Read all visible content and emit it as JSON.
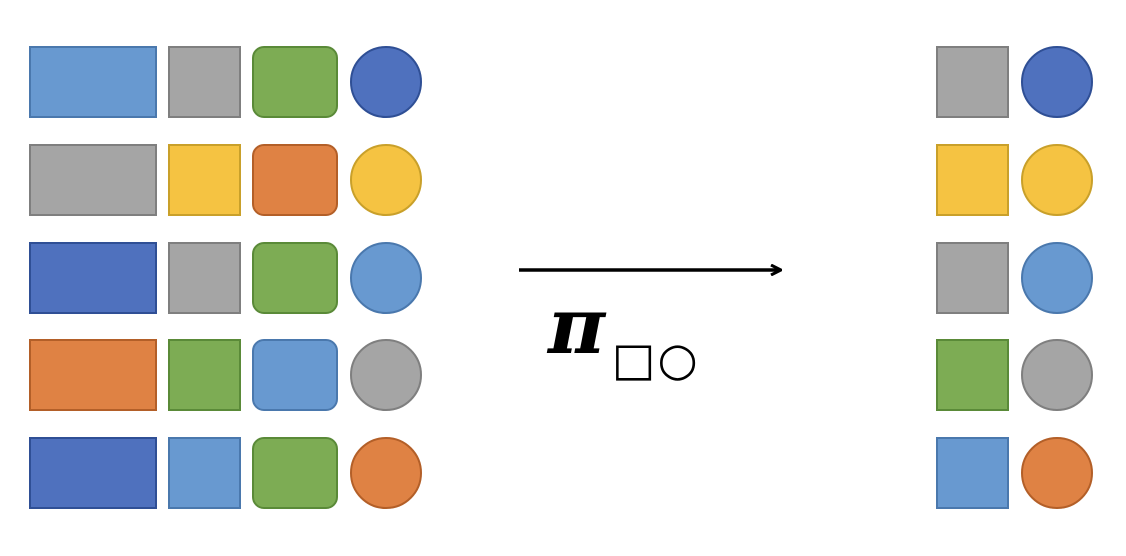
{
  "colors": {
    "light_blue": "#6899D0",
    "gray": "#A5A5A5",
    "green": "#7DAC54",
    "dark_blue": "#4F71BE",
    "yellow": "#F5C342",
    "orange": "#DF8244"
  },
  "strokes": {
    "light_blue": "#4A78AD",
    "gray": "#7F7F7F",
    "green": "#5A8A38",
    "dark_blue": "#2F4F95",
    "yellow": "#C9A02A",
    "orange": "#B35F28"
  },
  "input_rows": [
    {
      "wide": "light_blue",
      "square": "gray",
      "rounded": "green",
      "circle": "dark_blue"
    },
    {
      "wide": "gray",
      "square": "yellow",
      "rounded": "orange",
      "circle": "yellow"
    },
    {
      "wide": "dark_blue",
      "square": "gray",
      "rounded": "green",
      "circle": "light_blue"
    },
    {
      "wide": "orange",
      "square": "green",
      "rounded": "light_blue",
      "circle": "gray"
    },
    {
      "wide": "dark_blue",
      "square": "light_blue",
      "rounded": "green",
      "circle": "orange"
    }
  ],
  "output_rows": [
    {
      "square": "gray",
      "circle": "dark_blue"
    },
    {
      "square": "yellow",
      "circle": "yellow"
    },
    {
      "square": "gray",
      "circle": "light_blue"
    },
    {
      "square": "green",
      "circle": "gray"
    },
    {
      "square": "light_blue",
      "circle": "orange"
    }
  ],
  "operator": {
    "symbol": "π",
    "subscript": "□○"
  }
}
